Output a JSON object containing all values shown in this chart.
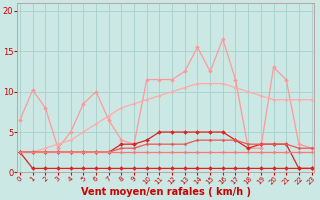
{
  "title": "",
  "xlabel": "Vent moyen/en rafales ( km/h )",
  "ylabel": "",
  "background_color": "#cce8e4",
  "grid_color": "#aad4d0",
  "x_values": [
    0,
    1,
    2,
    3,
    4,
    5,
    6,
    7,
    8,
    9,
    10,
    11,
    12,
    13,
    14,
    15,
    16,
    17,
    18,
    19,
    20,
    21,
    22,
    23
  ],
  "ylim": [
    0,
    21
  ],
  "xlim": [
    -0.2,
    23.2
  ],
  "series": [
    {
      "name": "light_upper",
      "color": "#ff9999",
      "linewidth": 0.9,
      "marker": "D",
      "markersize": 2.0,
      "y": [
        6.5,
        10.2,
        8.0,
        3.0,
        5.0,
        8.5,
        10.0,
        6.5,
        4.0,
        3.5,
        11.5,
        11.5,
        11.5,
        12.5,
        15.5,
        12.5,
        16.5,
        11.5,
        3.0,
        3.0,
        13.0,
        11.5,
        3.5,
        3.0
      ]
    },
    {
      "name": "light_smooth",
      "color": "#ffaaaa",
      "linewidth": 0.9,
      "marker": "D",
      "markersize": 1.5,
      "y": [
        2.5,
        2.5,
        3.0,
        3.5,
        4.0,
        5.0,
        6.0,
        7.0,
        8.0,
        8.5,
        9.0,
        9.5,
        10.0,
        10.5,
        11.0,
        11.0,
        11.0,
        10.5,
        10.0,
        9.5,
        9.0,
        9.0,
        9.0,
        9.0
      ]
    },
    {
      "name": "dark_upper",
      "color": "#dd2222",
      "linewidth": 0.9,
      "marker": "D",
      "markersize": 2.0,
      "y": [
        2.5,
        2.5,
        2.5,
        2.5,
        2.5,
        2.5,
        2.5,
        2.5,
        3.5,
        3.5,
        4.0,
        5.0,
        5.0,
        5.0,
        5.0,
        5.0,
        5.0,
        4.0,
        3.0,
        3.5,
        3.5,
        3.5,
        0.5,
        0.5
      ]
    },
    {
      "name": "dark_flat",
      "color": "#dd2222",
      "linewidth": 0.9,
      "marker": "D",
      "markersize": 2.0,
      "y": [
        2.5,
        0.5,
        0.5,
        0.5,
        0.5,
        0.5,
        0.5,
        0.5,
        0.5,
        0.5,
        0.5,
        0.5,
        0.5,
        0.5,
        0.5,
        0.5,
        0.5,
        0.5,
        0.5,
        0.5,
        0.5,
        0.5,
        0.5,
        0.5
      ]
    },
    {
      "name": "medium_smooth",
      "color": "#ee5555",
      "linewidth": 0.9,
      "marker": "D",
      "markersize": 1.5,
      "y": [
        2.5,
        2.5,
        2.5,
        2.5,
        2.5,
        2.5,
        2.5,
        2.5,
        3.0,
        3.0,
        3.5,
        3.5,
        3.5,
        3.5,
        4.0,
        4.0,
        4.0,
        4.0,
        3.5,
        3.5,
        3.5,
        3.5,
        3.0,
        3.0
      ]
    },
    {
      "name": "medium_flat",
      "color": "#ff7777",
      "linewidth": 0.9,
      "marker": "D",
      "markersize": 1.5,
      "y": [
        2.5,
        2.5,
        2.5,
        2.5,
        2.5,
        2.5,
        2.5,
        2.5,
        2.5,
        2.5,
        2.5,
        2.5,
        2.5,
        2.5,
        2.5,
        2.5,
        2.5,
        2.5,
        2.5,
        2.5,
        2.5,
        2.5,
        2.5,
        2.5
      ]
    }
  ],
  "tick_label_color": "#cc0000",
  "axis_label_color": "#cc0000",
  "yticks": [
    0,
    5,
    10,
    15,
    20
  ],
  "xticks": [
    0,
    1,
    2,
    3,
    4,
    5,
    6,
    7,
    8,
    9,
    10,
    11,
    12,
    13,
    14,
    15,
    16,
    17,
    18,
    19,
    20,
    21,
    22,
    23
  ],
  "xlabel_fontsize": 7.0,
  "xlabel_fontweight": "bold",
  "ytick_fontsize": 6.0,
  "xtick_fontsize": 5.0
}
